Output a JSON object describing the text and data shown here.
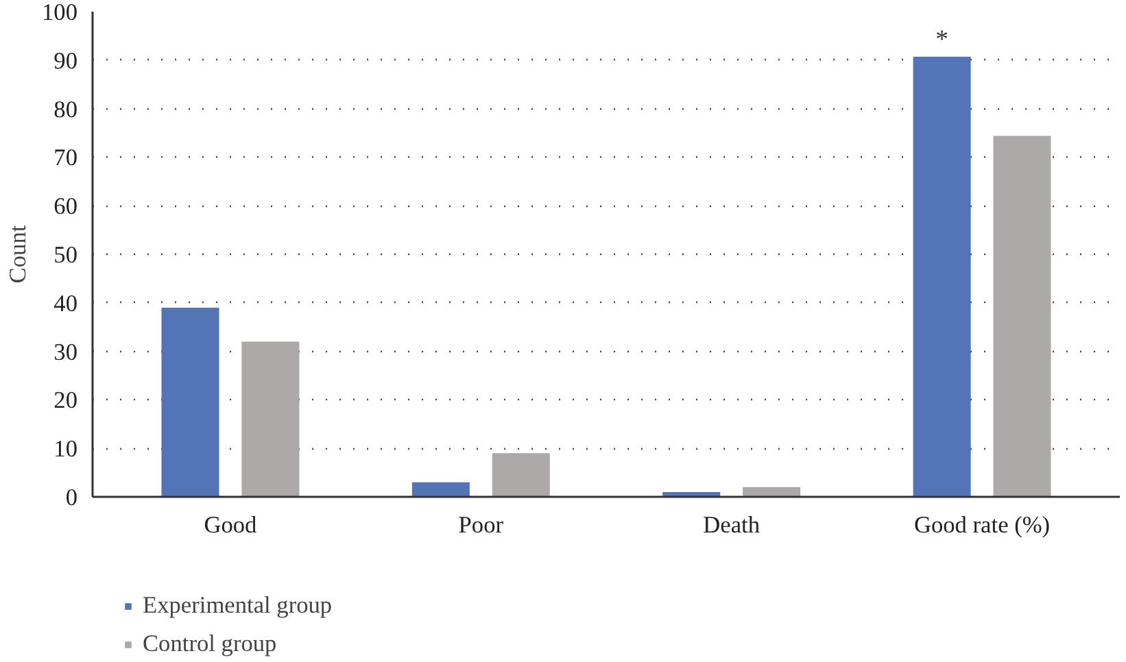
{
  "chart_data": {
    "type": "bar",
    "ylabel": "Count",
    "categories": [
      "Good",
      "Poor",
      "Death",
      "Good rate (%)"
    ],
    "series": [
      {
        "name": "Experimental group",
        "color": "#5474b8",
        "values": [
          39,
          3,
          1,
          90.7
        ]
      },
      {
        "name": "Control group",
        "color": "#aca9a8",
        "values": [
          32,
          9,
          2,
          74.4
        ]
      }
    ],
    "ylim": [
      0,
      100
    ],
    "yticks": [
      0,
      10,
      20,
      30,
      40,
      50,
      60,
      70,
      80,
      90,
      100
    ],
    "grid": "y",
    "legend": "bottom",
    "annotations": [
      "*"
    ]
  }
}
